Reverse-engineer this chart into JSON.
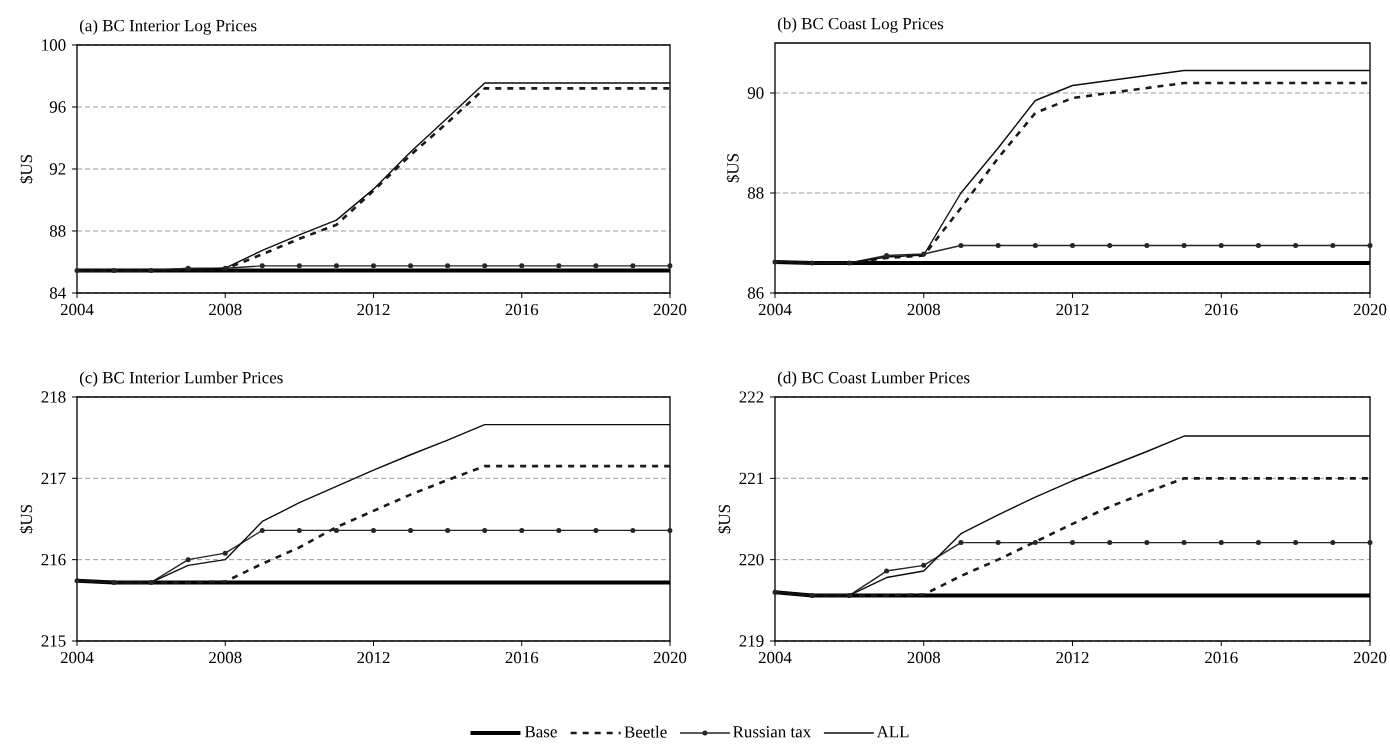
{
  "chart_data": [
    {
      "type": "line",
      "title": "(a) BC Interior Log Prices",
      "ylabel": "$US",
      "x": [
        2004,
        2005,
        2006,
        2007,
        2008,
        2009,
        2010,
        2011,
        2012,
        2013,
        2014,
        2015,
        2016,
        2017,
        2018,
        2019,
        2020
      ],
      "xlim": [
        2004,
        2020
      ],
      "xticks": [
        2004,
        2008,
        2012,
        2016,
        2020
      ],
      "ylim": [
        84,
        100
      ],
      "yticks": [
        84,
        88,
        92,
        96,
        100
      ],
      "grid": "y",
      "series": [
        {
          "color": "#000000",
          "values": [
            85.45,
            85.45,
            85.45,
            85.45,
            85.45,
            85.45,
            85.45,
            85.45,
            85.45,
            85.45,
            85.45,
            85.45,
            85.45,
            85.45,
            85.45,
            85.45,
            85.45
          ]
        },
        {
          "color": "#1a1a1a",
          "line_style": "dashed",
          "values": [
            85.45,
            85.45,
            85.45,
            85.5,
            85.55,
            86.5,
            87.5,
            88.4,
            90.6,
            92.9,
            95.0,
            97.2,
            97.2,
            97.2,
            97.2,
            97.2,
            97.2
          ]
        },
        {
          "color": "#262626",
          "marker": "circle",
          "values": [
            85.45,
            85.45,
            85.45,
            85.6,
            85.6,
            85.75,
            85.75,
            85.75,
            85.75,
            85.75,
            85.75,
            85.75,
            85.75,
            85.75,
            85.75,
            85.75,
            85.75
          ]
        },
        {
          "color": "#0d0d0d",
          "values": [
            85.45,
            85.45,
            85.45,
            85.5,
            85.6,
            86.75,
            87.75,
            88.7,
            90.7,
            93.1,
            95.3,
            97.55,
            97.55,
            97.55,
            97.55,
            97.55,
            97.55
          ]
        }
      ]
    },
    {
      "type": "line",
      "title": "(b) BC Coast Log Prices",
      "ylabel": "$US",
      "x": [
        2004,
        2005,
        2006,
        2007,
        2008,
        2009,
        2010,
        2011,
        2012,
        2013,
        2014,
        2015,
        2016,
        2017,
        2018,
        2019,
        2020
      ],
      "xlim": [
        2004,
        2020
      ],
      "xticks": [
        2004,
        2008,
        2012,
        2016,
        2020
      ],
      "ylim": [
        86,
        91
      ],
      "yticks": [
        86,
        88,
        90
      ],
      "grid": "y",
      "series": [
        {
          "color": "#000000",
          "values": [
            86.62,
            86.6,
            86.6,
            86.6,
            86.6,
            86.6,
            86.6,
            86.6,
            86.6,
            86.6,
            86.6,
            86.6,
            86.6,
            86.6,
            86.6,
            86.6,
            86.6
          ]
        },
        {
          "color": "#1a1a1a",
          "line_style": "dashed",
          "values": [
            86.62,
            86.6,
            86.6,
            86.7,
            86.75,
            87.7,
            88.7,
            89.6,
            89.9,
            90.0,
            90.1,
            90.2,
            90.2,
            90.2,
            90.2,
            90.2,
            90.2
          ]
        },
        {
          "color": "#262626",
          "marker": "circle",
          "values": [
            86.62,
            86.6,
            86.6,
            86.75,
            86.78,
            86.95,
            86.95,
            86.95,
            86.95,
            86.95,
            86.95,
            86.95,
            86.95,
            86.95,
            86.95,
            86.95,
            86.95
          ]
        },
        {
          "color": "#0d0d0d",
          "values": [
            86.62,
            86.6,
            86.6,
            86.72,
            86.76,
            88.0,
            88.9,
            89.85,
            90.15,
            90.25,
            90.35,
            90.45,
            90.45,
            90.45,
            90.45,
            90.45,
            90.45
          ]
        }
      ]
    },
    {
      "type": "line",
      "title": "(c) BC Interior Lumber Prices",
      "ylabel": "$US",
      "x": [
        2004,
        2005,
        2006,
        2007,
        2008,
        2009,
        2010,
        2011,
        2012,
        2013,
        2014,
        2015,
        2016,
        2017,
        2018,
        2019,
        2020
      ],
      "xlim": [
        2004,
        2020
      ],
      "xticks": [
        2004,
        2008,
        2012,
        2016,
        2020
      ],
      "ylim": [
        215,
        218
      ],
      "yticks": [
        215,
        216,
        217,
        218
      ],
      "grid": "y",
      "series": [
        {
          "color": "#000000",
          "values": [
            215.74,
            215.72,
            215.72,
            215.72,
            215.72,
            215.72,
            215.72,
            215.72,
            215.72,
            215.72,
            215.72,
            215.72,
            215.72,
            215.72,
            215.72,
            215.72,
            215.72
          ]
        },
        {
          "color": "#1a1a1a",
          "line_style": "dashed",
          "values": [
            215.74,
            215.72,
            215.72,
            215.72,
            215.73,
            215.95,
            216.15,
            216.4,
            216.6,
            216.8,
            216.98,
            217.15,
            217.15,
            217.15,
            217.15,
            217.15,
            217.15
          ]
        },
        {
          "color": "#262626",
          "marker": "circle",
          "values": [
            215.74,
            215.72,
            215.72,
            216.0,
            216.08,
            216.36,
            216.36,
            216.36,
            216.36,
            216.36,
            216.36,
            216.36,
            216.36,
            216.36,
            216.36,
            216.36,
            216.36
          ]
        },
        {
          "color": "#0d0d0d",
          "values": [
            215.74,
            215.72,
            215.72,
            215.93,
            216.0,
            216.47,
            216.7,
            216.9,
            217.1,
            217.29,
            217.47,
            217.66,
            217.66,
            217.66,
            217.66,
            217.66,
            217.66
          ]
        }
      ]
    },
    {
      "type": "line",
      "title": "(d) BC Coast Lumber Prices",
      "ylabel": "$US",
      "x": [
        2004,
        2005,
        2006,
        2007,
        2008,
        2009,
        2010,
        2011,
        2012,
        2013,
        2014,
        2015,
        2016,
        2017,
        2018,
        2019,
        2020
      ],
      "xlim": [
        2004,
        2020
      ],
      "xticks": [
        2004,
        2008,
        2012,
        2016,
        2020
      ],
      "ylim": [
        219,
        222
      ],
      "yticks": [
        219,
        220,
        221,
        222
      ],
      "grid": "y",
      "legend": "bottom",
      "series": [
        {
          "name": "Base",
          "color": "#000000",
          "values": [
            219.6,
            219.56,
            219.56,
            219.56,
            219.56,
            219.56,
            219.56,
            219.56,
            219.56,
            219.56,
            219.56,
            219.56,
            219.56,
            219.56,
            219.56,
            219.56,
            219.56
          ]
        },
        {
          "name": "Beetle",
          "color": "#1a1a1a",
          "line_style": "dashed",
          "values": [
            219.6,
            219.56,
            219.56,
            219.56,
            219.57,
            219.8,
            220.0,
            220.22,
            220.44,
            220.65,
            220.83,
            221.0,
            221.0,
            221.0,
            221.0,
            221.0,
            221.0
          ]
        },
        {
          "name": "Russian tax",
          "color": "#262626",
          "marker": "circle",
          "values": [
            219.6,
            219.56,
            219.56,
            219.86,
            219.93,
            220.21,
            220.21,
            220.21,
            220.21,
            220.21,
            220.21,
            220.21,
            220.21,
            220.21,
            220.21,
            220.21,
            220.21
          ]
        },
        {
          "name": "ALL",
          "color": "#0d0d0d",
          "values": [
            219.6,
            219.56,
            219.56,
            219.78,
            219.86,
            220.32,
            220.55,
            220.77,
            220.97,
            221.15,
            221.33,
            221.52,
            221.52,
            221.52,
            221.52,
            221.52,
            221.52
          ]
        }
      ]
    }
  ]
}
